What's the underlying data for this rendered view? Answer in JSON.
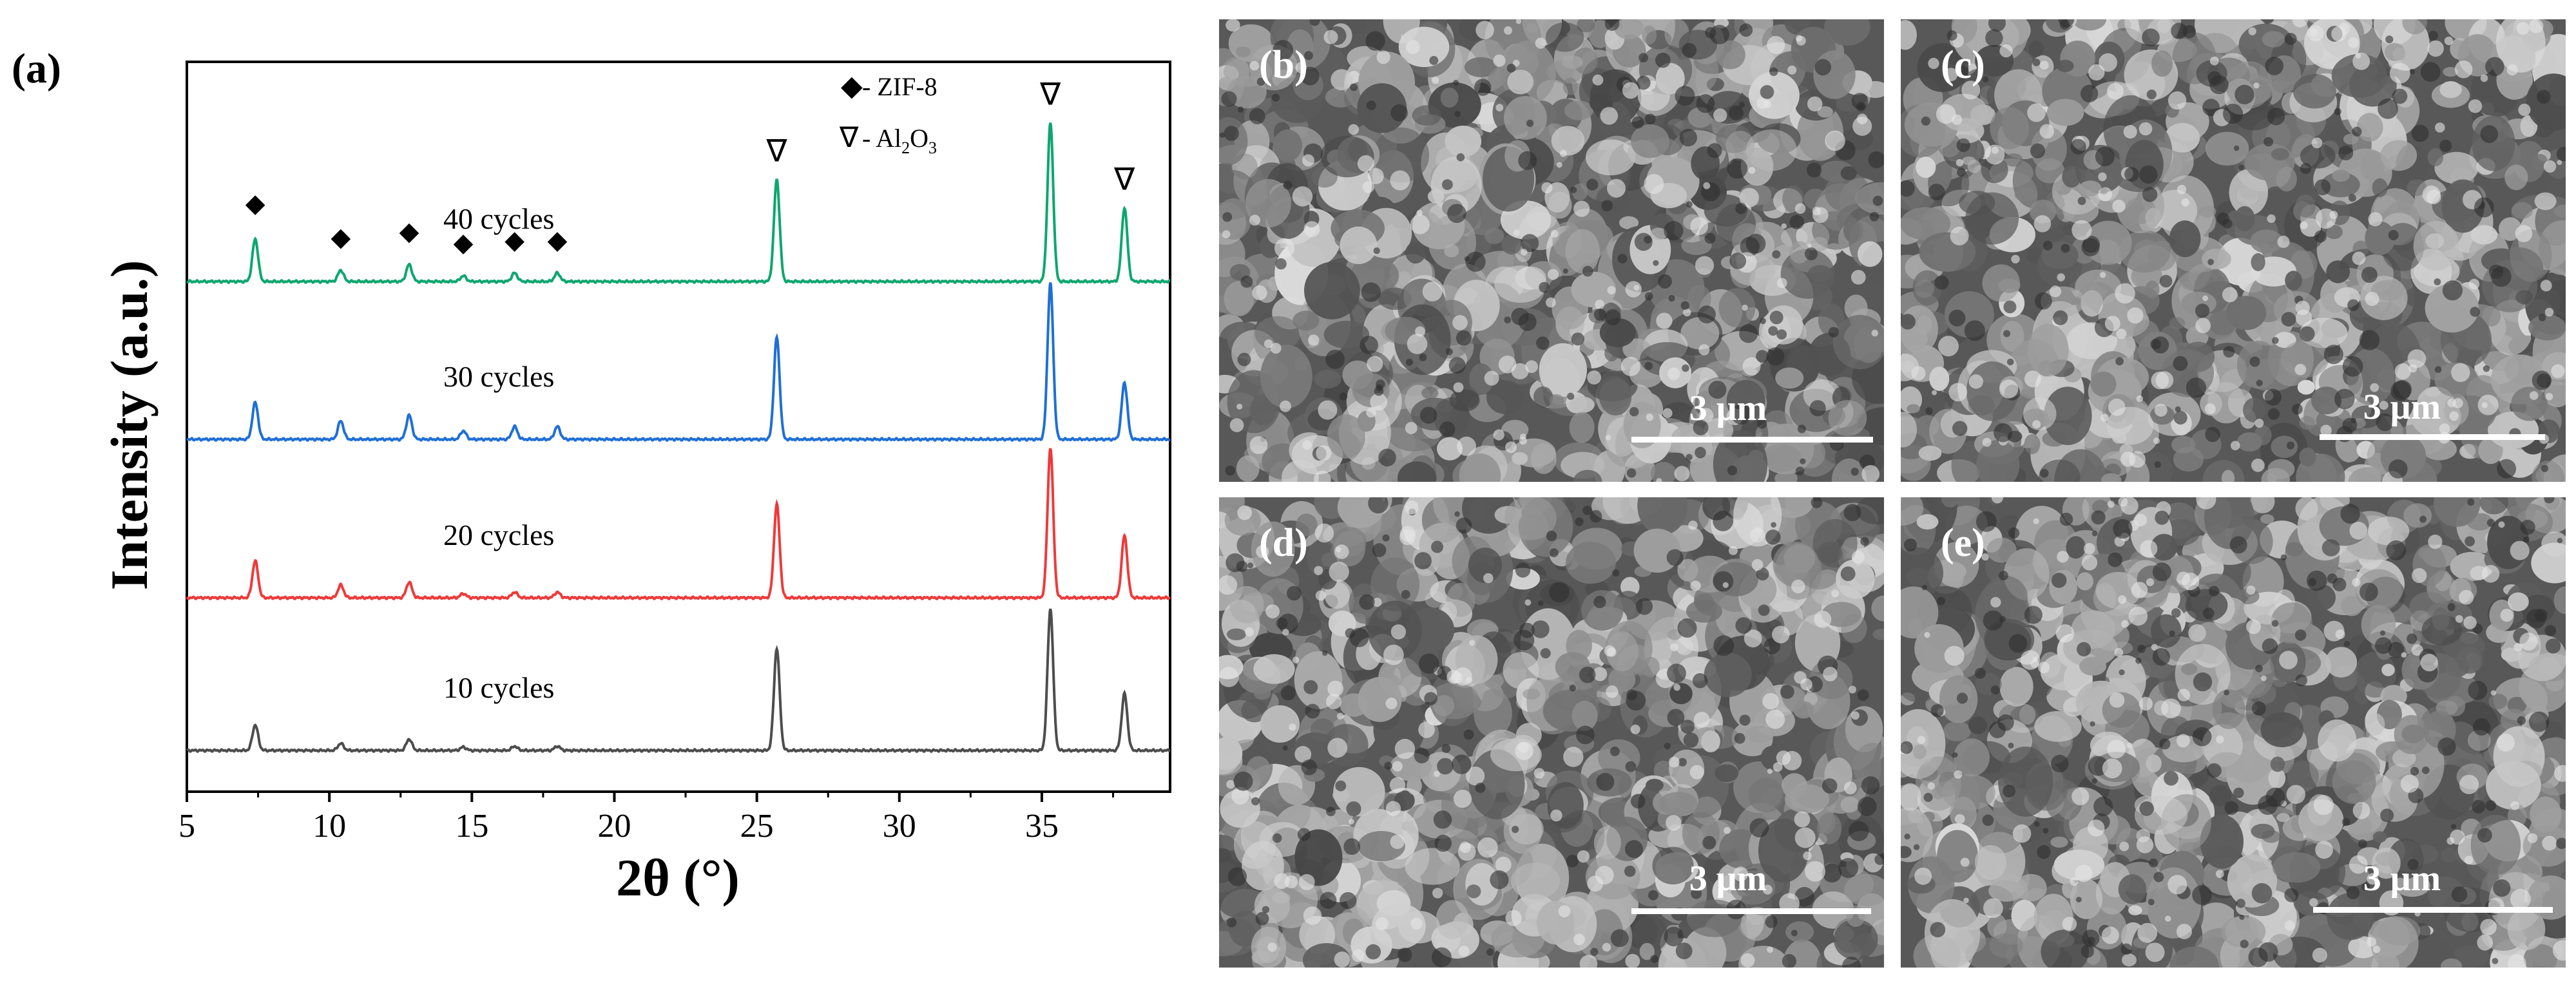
{
  "panel_a": {
    "label": "(a)",
    "legend": {
      "zif_symbol": "◆",
      "zif_label": "- ZIF-8",
      "al_symbol": "∇",
      "al_label_prefix": "- Al",
      "al_sub1": "2",
      "al_mid": "O",
      "al_sub2": "3"
    }
  },
  "chart_data": {
    "type": "line",
    "xlabel": "2θ (°)",
    "ylabel": "Intensity (a.u.)",
    "xlim": [
      5,
      39.5
    ],
    "x_ticks": [
      5,
      10,
      15,
      20,
      25,
      30,
      35
    ],
    "y_ticks": [],
    "grid": false,
    "peaks": {
      "zif8": [
        7.4,
        10.4,
        12.8,
        14.7,
        16.5,
        18.0
      ],
      "al2o3": [
        25.7,
        35.3,
        37.9
      ]
    },
    "series": [
      {
        "name": "10 cycles",
        "color": "#4d4d4d",
        "offset": 0,
        "zif8_heights": [
          0.9,
          0.25,
          0.4,
          0.12,
          0.15,
          0.15
        ],
        "al2o3_heights": [
          3.6,
          5.0,
          2.0
        ]
      },
      {
        "name": "20 cycles",
        "color": "#ee3a3a",
        "offset": 1,
        "zif8_heights": [
          1.3,
          0.45,
          0.55,
          0.15,
          0.2,
          0.2
        ],
        "al2o3_heights": [
          3.3,
          5.3,
          2.2
        ]
      },
      {
        "name": "30 cycles",
        "color": "#1f6fd6",
        "offset": 2,
        "zif8_heights": [
          1.3,
          0.65,
          0.85,
          0.3,
          0.45,
          0.45
        ],
        "al2o3_heights": [
          3.6,
          5.5,
          2.0
        ]
      },
      {
        "name": "40 cycles",
        "color": "#0ea66f",
        "offset": 3,
        "zif8_heights": [
          1.5,
          0.4,
          0.6,
          0.2,
          0.3,
          0.3
        ],
        "al2o3_heights": [
          3.6,
          5.6,
          2.6
        ]
      }
    ]
  },
  "sem_panels": [
    {
      "label": "(b)",
      "scale": "3 μm"
    },
    {
      "label": "(c)",
      "scale": "3 μm"
    },
    {
      "label": "(d)",
      "scale": "3 μm"
    },
    {
      "label": "(e)",
      "scale": "3 μm"
    }
  ]
}
